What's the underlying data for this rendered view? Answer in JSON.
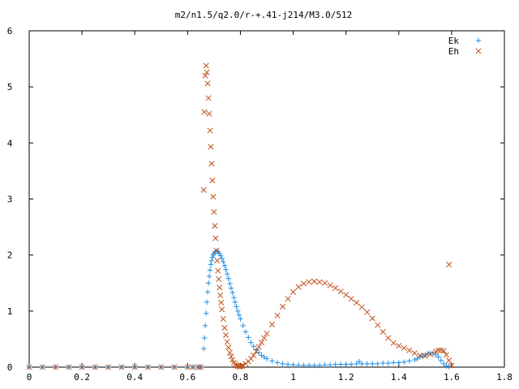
{
  "chart_data": {
    "type": "scatter",
    "title": "m2/n1.5/q2.0/r-+.41-j214/M3.0/512",
    "xlabel": "",
    "ylabel": "",
    "xlim": [
      0,
      1.8
    ],
    "ylim": [
      0,
      6
    ],
    "x_ticks": [
      "0",
      "0.2",
      "0.4",
      "0.6",
      "0.8",
      "1",
      "1.2",
      "1.4",
      "1.6",
      "1.8"
    ],
    "y_ticks": [
      "0",
      "1",
      "2",
      "3",
      "4",
      "5",
      "6"
    ],
    "grid": false,
    "legend_position": "top-right",
    "series": [
      {
        "name": "Ek",
        "marker": "+",
        "color": "#1E90E8",
        "points": [
          [
            0.0,
            0
          ],
          [
            0.05,
            0
          ],
          [
            0.1,
            0
          ],
          [
            0.15,
            0
          ],
          [
            0.2,
            0
          ],
          [
            0.25,
            0
          ],
          [
            0.3,
            0
          ],
          [
            0.35,
            0
          ],
          [
            0.4,
            0
          ],
          [
            0.45,
            0
          ],
          [
            0.5,
            0
          ],
          [
            0.55,
            0
          ],
          [
            0.6,
            0
          ],
          [
            0.62,
            0
          ],
          [
            0.64,
            0
          ],
          [
            0.65,
            0
          ],
          [
            0.661,
            0.33
          ],
          [
            0.664,
            0.52
          ],
          [
            0.667,
            0.74
          ],
          [
            0.67,
            0.96
          ],
          [
            0.673,
            1.16
          ],
          [
            0.676,
            1.34
          ],
          [
            0.679,
            1.5
          ],
          [
            0.682,
            1.62
          ],
          [
            0.685,
            1.73
          ],
          [
            0.688,
            1.83
          ],
          [
            0.691,
            1.9
          ],
          [
            0.694,
            1.96
          ],
          [
            0.697,
            2.0
          ],
          [
            0.7,
            2.03
          ],
          [
            0.705,
            2.06
          ],
          [
            0.71,
            2.07
          ],
          [
            0.715,
            2.06
          ],
          [
            0.72,
            2.03
          ],
          [
            0.725,
            1.99
          ],
          [
            0.73,
            1.94
          ],
          [
            0.735,
            1.88
          ],
          [
            0.74,
            1.81
          ],
          [
            0.745,
            1.74
          ],
          [
            0.75,
            1.66
          ],
          [
            0.755,
            1.58
          ],
          [
            0.76,
            1.49
          ],
          [
            0.765,
            1.41
          ],
          [
            0.77,
            1.33
          ],
          [
            0.775,
            1.24
          ],
          [
            0.78,
            1.16
          ],
          [
            0.785,
            1.08
          ],
          [
            0.79,
            1.0
          ],
          [
            0.795,
            0.93
          ],
          [
            0.8,
            0.86
          ],
          [
            0.81,
            0.74
          ],
          [
            0.82,
            0.63
          ],
          [
            0.83,
            0.53
          ],
          [
            0.84,
            0.44
          ],
          [
            0.85,
            0.37
          ],
          [
            0.86,
            0.31
          ],
          [
            0.87,
            0.26
          ],
          [
            0.88,
            0.21
          ],
          [
            0.89,
            0.18
          ],
          [
            0.9,
            0.15
          ],
          [
            0.92,
            0.11
          ],
          [
            0.94,
            0.08
          ],
          [
            0.96,
            0.06
          ],
          [
            0.98,
            0.05
          ],
          [
            1.0,
            0.04
          ],
          [
            1.02,
            0.035
          ],
          [
            1.04,
            0.03
          ],
          [
            1.06,
            0.03
          ],
          [
            1.08,
            0.03
          ],
          [
            1.1,
            0.03
          ],
          [
            1.12,
            0.04
          ],
          [
            1.14,
            0.04
          ],
          [
            1.16,
            0.05
          ],
          [
            1.18,
            0.05
          ],
          [
            1.2,
            0.05
          ],
          [
            1.22,
            0.05
          ],
          [
            1.24,
            0.06
          ],
          [
            1.25,
            0.1
          ],
          [
            1.26,
            0.06
          ],
          [
            1.28,
            0.06
          ],
          [
            1.3,
            0.06
          ],
          [
            1.32,
            0.06
          ],
          [
            1.34,
            0.07
          ],
          [
            1.36,
            0.07
          ],
          [
            1.38,
            0.08
          ],
          [
            1.4,
            0.08
          ],
          [
            1.42,
            0.09
          ],
          [
            1.44,
            0.11
          ],
          [
            1.46,
            0.13
          ],
          [
            1.47,
            0.15
          ],
          [
            1.48,
            0.18
          ],
          [
            1.49,
            0.2
          ],
          [
            1.5,
            0.22
          ],
          [
            1.51,
            0.24
          ],
          [
            1.52,
            0.25
          ],
          [
            1.53,
            0.25
          ],
          [
            1.54,
            0.22
          ],
          [
            1.55,
            0.18
          ],
          [
            1.56,
            0.12
          ],
          [
            1.57,
            0.06
          ],
          [
            1.58,
            0.02
          ],
          [
            1.59,
            0.01
          ]
        ]
      },
      {
        "name": "Eh",
        "marker": "x",
        "color": "#C0501A",
        "points": [
          [
            0.0,
            0
          ],
          [
            0.05,
            0
          ],
          [
            0.1,
            0
          ],
          [
            0.15,
            0
          ],
          [
            0.2,
            0
          ],
          [
            0.25,
            0
          ],
          [
            0.3,
            0
          ],
          [
            0.35,
            0
          ],
          [
            0.4,
            0
          ],
          [
            0.45,
            0
          ],
          [
            0.5,
            0
          ],
          [
            0.55,
            0
          ],
          [
            0.6,
            0
          ],
          [
            0.62,
            0
          ],
          [
            0.64,
            0
          ],
          [
            0.65,
            0
          ],
          [
            0.661,
            3.16
          ],
          [
            0.664,
            4.55
          ],
          [
            0.667,
            5.2
          ],
          [
            0.67,
            5.38
          ],
          [
            0.673,
            5.26
          ],
          [
            0.676,
            5.06
          ],
          [
            0.679,
            4.8
          ],
          [
            0.682,
            4.52
          ],
          [
            0.685,
            4.22
          ],
          [
            0.688,
            3.93
          ],
          [
            0.691,
            3.63
          ],
          [
            0.694,
            3.33
          ],
          [
            0.697,
            3.04
          ],
          [
            0.7,
            2.77
          ],
          [
            0.703,
            2.52
          ],
          [
            0.706,
            2.3
          ],
          [
            0.709,
            2.08
          ],
          [
            0.712,
            1.9
          ],
          [
            0.715,
            1.72
          ],
          [
            0.718,
            1.57
          ],
          [
            0.721,
            1.42
          ],
          [
            0.724,
            1.28
          ],
          [
            0.727,
            1.15
          ],
          [
            0.73,
            1.03
          ],
          [
            0.735,
            0.86
          ],
          [
            0.74,
            0.7
          ],
          [
            0.745,
            0.57
          ],
          [
            0.75,
            0.45
          ],
          [
            0.755,
            0.35
          ],
          [
            0.76,
            0.26
          ],
          [
            0.765,
            0.19
          ],
          [
            0.77,
            0.13
          ],
          [
            0.775,
            0.08
          ],
          [
            0.78,
            0.05
          ],
          [
            0.785,
            0.03
          ],
          [
            0.79,
            0.02
          ],
          [
            0.795,
            0.01
          ],
          [
            0.8,
            0.01
          ],
          [
            0.805,
            0.02
          ],
          [
            0.81,
            0.03
          ],
          [
            0.82,
            0.06
          ],
          [
            0.83,
            0.1
          ],
          [
            0.84,
            0.15
          ],
          [
            0.85,
            0.21
          ],
          [
            0.86,
            0.28
          ],
          [
            0.87,
            0.36
          ],
          [
            0.88,
            0.44
          ],
          [
            0.89,
            0.52
          ],
          [
            0.9,
            0.6
          ],
          [
            0.92,
            0.76
          ],
          [
            0.94,
            0.92
          ],
          [
            0.96,
            1.08
          ],
          [
            0.98,
            1.22
          ],
          [
            1.0,
            1.34
          ],
          [
            1.02,
            1.43
          ],
          [
            1.04,
            1.49
          ],
          [
            1.06,
            1.52
          ],
          [
            1.08,
            1.53
          ],
          [
            1.1,
            1.52
          ],
          [
            1.12,
            1.5
          ],
          [
            1.14,
            1.46
          ],
          [
            1.16,
            1.41
          ],
          [
            1.18,
            1.35
          ],
          [
            1.2,
            1.29
          ],
          [
            1.22,
            1.22
          ],
          [
            1.24,
            1.15
          ],
          [
            1.26,
            1.07
          ],
          [
            1.28,
            0.98
          ],
          [
            1.3,
            0.87
          ],
          [
            1.32,
            0.75
          ],
          [
            1.34,
            0.63
          ],
          [
            1.36,
            0.52
          ],
          [
            1.38,
            0.43
          ],
          [
            1.4,
            0.38
          ],
          [
            1.42,
            0.34
          ],
          [
            1.44,
            0.3
          ],
          [
            1.46,
            0.25
          ],
          [
            1.48,
            0.21
          ],
          [
            1.5,
            0.2
          ],
          [
            1.52,
            0.23
          ],
          [
            1.54,
            0.28
          ],
          [
            1.55,
            0.3
          ],
          [
            1.56,
            0.3
          ],
          [
            1.57,
            0.29
          ],
          [
            1.58,
            0.22
          ],
          [
            1.59,
            0.12
          ],
          [
            1.6,
            0.03
          ],
          [
            1.59,
            1.83
          ]
        ]
      }
    ]
  }
}
